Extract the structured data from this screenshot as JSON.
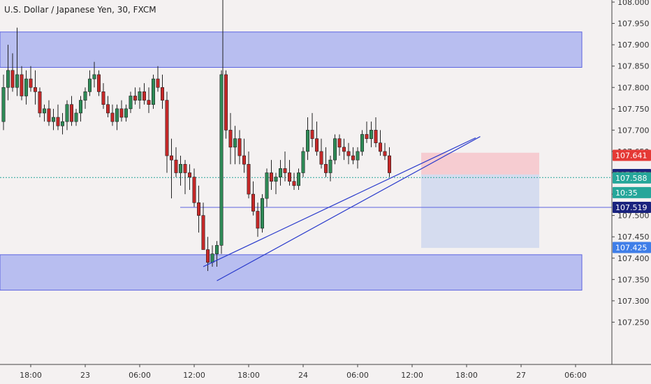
{
  "header": {
    "title": "U.S. Dollar / Japanese Yen, 30, FXCM"
  },
  "colors": {
    "background": "#f4f1f1",
    "up": "#2e8b57",
    "down": "#c62828",
    "zone": "#8f9cf0",
    "zone_edge": "#5b63e0",
    "trendline": "#2a3bcc",
    "stop_zone": "#f6c6cb",
    "target_zone": "#cfd8ee"
  },
  "chart_data": {
    "type": "candlestick",
    "symbol": "USD/JPY",
    "timeframe": "30",
    "source": "FXCM",
    "ylim": [
      107.2,
      108.0
    ],
    "yticks": [
      "108.000",
      "107.950",
      "107.900",
      "107.850",
      "107.800",
      "107.750",
      "107.700",
      "107.650",
      "107.600",
      "107.550",
      "107.500",
      "107.450",
      "107.400",
      "107.350",
      "107.300",
      "107.250"
    ],
    "xticks": [
      {
        "index": 6,
        "label": "18:00"
      },
      {
        "index": 18,
        "label": "23"
      },
      {
        "index": 30,
        "label": "06:00"
      },
      {
        "index": 42,
        "label": "12:00"
      },
      {
        "index": 54,
        "label": "18:00"
      },
      {
        "index": 66,
        "label": "24"
      },
      {
        "index": 78,
        "label": "06:00"
      },
      {
        "index": 90,
        "label": "12:00"
      },
      {
        "index": 102,
        "label": "18:00"
      },
      {
        "index": 114,
        "label": "27"
      },
      {
        "index": 126,
        "label": "06:00"
      }
    ],
    "candles": [
      [
        107.72,
        107.83,
        107.7,
        107.8
      ],
      [
        107.8,
        107.9,
        107.77,
        107.84
      ],
      [
        107.84,
        107.88,
        107.79,
        107.8
      ],
      [
        107.8,
        107.94,
        107.78,
        107.83
      ],
      [
        107.83,
        107.85,
        107.77,
        107.78
      ],
      [
        107.78,
        107.84,
        107.76,
        107.82
      ],
      [
        107.82,
        107.85,
        107.79,
        107.8
      ],
      [
        107.8,
        107.84,
        107.76,
        107.79
      ],
      [
        107.79,
        107.8,
        107.73,
        107.74
      ],
      [
        107.74,
        107.76,
        107.72,
        107.75
      ],
      [
        107.75,
        107.77,
        107.71,
        107.72
      ],
      [
        107.72,
        107.75,
        107.7,
        107.73
      ],
      [
        107.73,
        107.76,
        107.7,
        107.71
      ],
      [
        107.71,
        107.74,
        107.69,
        107.72
      ],
      [
        107.72,
        107.77,
        107.7,
        107.76
      ],
      [
        107.76,
        107.78,
        107.71,
        107.72
      ],
      [
        107.72,
        107.75,
        107.71,
        107.74
      ],
      [
        107.74,
        107.78,
        107.72,
        107.77
      ],
      [
        107.77,
        107.8,
        107.75,
        107.79
      ],
      [
        107.79,
        107.84,
        107.78,
        107.82
      ],
      [
        107.82,
        107.86,
        107.8,
        107.83
      ],
      [
        107.83,
        107.84,
        107.78,
        107.79
      ],
      [
        107.79,
        107.81,
        107.75,
        107.76
      ],
      [
        107.76,
        107.78,
        107.73,
        107.74
      ],
      [
        107.74,
        107.76,
        107.71,
        107.72
      ],
      [
        107.72,
        107.76,
        107.7,
        107.75
      ],
      [
        107.75,
        107.77,
        107.72,
        107.73
      ],
      [
        107.73,
        107.76,
        107.72,
        107.75
      ],
      [
        107.75,
        107.79,
        107.74,
        107.78
      ],
      [
        107.78,
        107.8,
        107.76,
        107.77
      ],
      [
        107.77,
        107.8,
        107.75,
        107.79
      ],
      [
        107.79,
        107.81,
        107.76,
        107.77
      ],
      [
        107.77,
        107.8,
        107.74,
        107.76
      ],
      [
        107.76,
        107.83,
        107.75,
        107.82
      ],
      [
        107.82,
        107.85,
        107.79,
        107.8
      ],
      [
        107.8,
        107.83,
        107.75,
        107.77
      ],
      [
        107.77,
        107.79,
        107.6,
        107.64
      ],
      [
        107.64,
        107.68,
        107.54,
        107.63
      ],
      [
        107.63,
        107.66,
        107.59,
        107.6
      ],
      [
        107.6,
        107.64,
        107.57,
        107.62
      ],
      [
        107.62,
        107.63,
        107.55,
        107.6
      ],
      [
        107.6,
        107.62,
        107.56,
        107.59
      ],
      [
        107.59,
        107.61,
        107.52,
        107.53
      ],
      [
        107.53,
        107.57,
        107.46,
        107.5
      ],
      [
        107.5,
        107.53,
        107.42,
        107.42
      ],
      [
        107.42,
        107.45,
        107.37,
        107.39
      ],
      [
        107.39,
        107.43,
        107.38,
        107.41
      ],
      [
        107.41,
        107.44,
        107.38,
        107.43
      ],
      [
        107.43,
        107.84,
        107.41,
        107.83
      ],
      [
        107.83,
        107.84,
        107.68,
        107.7
      ],
      [
        107.7,
        107.74,
        107.62,
        107.66
      ],
      [
        107.66,
        107.71,
        107.62,
        107.68
      ],
      [
        107.68,
        107.7,
        107.62,
        107.64
      ],
      [
        107.64,
        107.68,
        107.6,
        107.62
      ],
      [
        107.62,
        107.65,
        107.54,
        107.55
      ],
      [
        107.55,
        107.58,
        107.5,
        107.51
      ],
      [
        107.51,
        107.53,
        107.45,
        107.47
      ],
      [
        107.47,
        107.55,
        107.46,
        107.54
      ],
      [
        107.54,
        107.61,
        107.52,
        107.6
      ],
      [
        107.6,
        107.63,
        107.56,
        107.58
      ],
      [
        107.58,
        107.6,
        107.55,
        107.59
      ],
      [
        107.59,
        107.63,
        107.57,
        107.61
      ],
      [
        107.61,
        107.65,
        107.58,
        107.6
      ],
      [
        107.6,
        107.63,
        107.57,
        107.58
      ],
      [
        107.58,
        107.6,
        107.56,
        107.57
      ],
      [
        107.57,
        107.61,
        107.56,
        107.6
      ],
      [
        107.6,
        107.66,
        107.59,
        107.65
      ],
      [
        107.65,
        107.73,
        107.63,
        107.7
      ],
      [
        107.7,
        107.74,
        107.66,
        107.68
      ],
      [
        107.68,
        107.72,
        107.64,
        107.65
      ],
      [
        107.65,
        107.68,
        107.61,
        107.62
      ],
      [
        107.62,
        107.66,
        107.59,
        107.6
      ],
      [
        107.6,
        107.64,
        107.58,
        107.63
      ],
      [
        107.63,
        107.69,
        107.62,
        107.68
      ],
      [
        107.68,
        107.69,
        107.64,
        107.66
      ],
      [
        107.66,
        107.68,
        107.63,
        107.65
      ],
      [
        107.65,
        107.67,
        107.62,
        107.64
      ],
      [
        107.64,
        107.66,
        107.62,
        107.63
      ],
      [
        107.63,
        107.66,
        107.61,
        107.65
      ],
      [
        107.65,
        107.7,
        107.64,
        107.69
      ],
      [
        107.69,
        107.72,
        107.67,
        107.68
      ],
      [
        107.68,
        107.72,
        107.66,
        107.7
      ],
      [
        107.7,
        107.73,
        107.66,
        107.67
      ],
      [
        107.67,
        107.7,
        107.64,
        107.65
      ],
      [
        107.65,
        107.67,
        107.63,
        107.64
      ],
      [
        107.64,
        107.66,
        107.59,
        107.6
      ]
    ],
    "zones": [
      {
        "from": 107.847,
        "to": 107.93
      },
      {
        "from": 107.325,
        "to": 107.408
      }
    ],
    "trendlines": [
      {
        "x1": 47,
        "y1": 107.347,
        "x2": 105,
        "y2": 107.685
      },
      {
        "x1": 44,
        "y1": 107.38,
        "x2": 104,
        "y2": 107.682
      }
    ],
    "position": {
      "x_start": 92,
      "x_end": 118,
      "stop": 107.647,
      "entry": 107.596,
      "target": 107.424
    },
    "hline": 107.519,
    "price_labels": [
      {
        "text": "107.641",
        "value": 107.641,
        "color": "#e53935"
      },
      {
        "text": "107.596",
        "value": 107.596,
        "color": "#1a237e"
      },
      {
        "text": "107.589",
        "value": 107.589,
        "color": "#555555"
      },
      {
        "text": "107.588",
        "value": 107.588,
        "color": "#26a69a"
      },
      {
        "text": "10:35",
        "value": 107.5535,
        "color": "#26a69a"
      },
      {
        "text": "107.519",
        "value": 107.519,
        "color": "#1a237e"
      },
      {
        "text": "107.425",
        "value": 107.425,
        "color": "#3f7ee8"
      }
    ]
  }
}
